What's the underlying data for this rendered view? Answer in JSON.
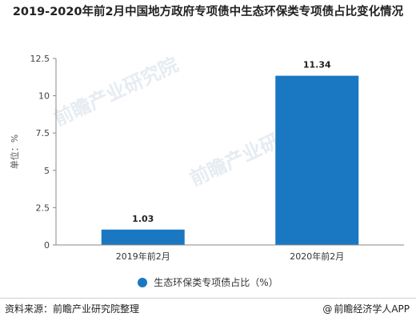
{
  "chart_data": {
    "type": "bar",
    "title": "2019-2020年前2月中国地方政府专项债中生态环保类专项债占比变化情况",
    "ylabel": "单位：%",
    "xlabel": "",
    "categories": [
      "2019年前2月",
      "2020年前2月"
    ],
    "series": [
      {
        "name": "生态环保类专项债占比（%）",
        "values": [
          1.03,
          11.34
        ]
      }
    ],
    "data_labels": [
      "1.03",
      "11.34"
    ],
    "ylim": [
      0,
      12.5
    ],
    "yticks": [
      "0",
      "2.5",
      "5",
      "7.5",
      "10",
      "12.5"
    ],
    "grid": false,
    "legend_position": "bottom",
    "bar_color": "#1a78c2"
  },
  "footer": {
    "source": "资料来源：前瞻产业研究院整理",
    "brand": "前瞻经济学人APP",
    "brand_icon": "at-sign-icon"
  },
  "watermarks": [
    "前瞻产业研究院",
    "前瞻产业研究院"
  ]
}
